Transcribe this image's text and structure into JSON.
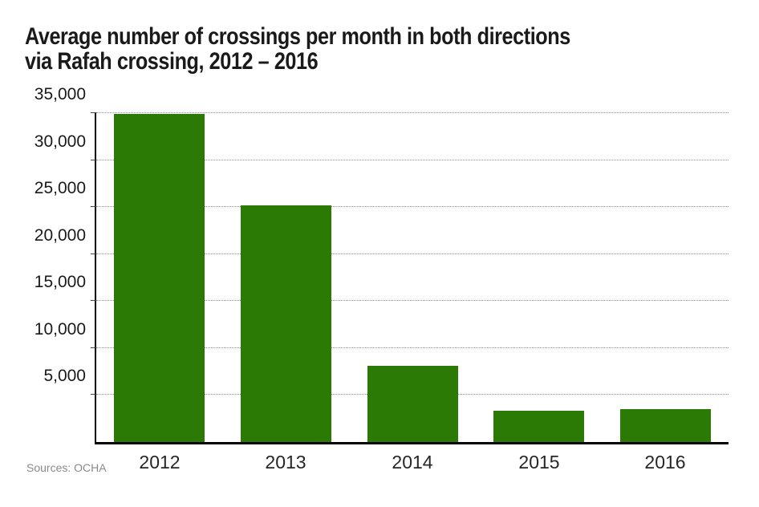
{
  "title": {
    "line1": "Average number of crossings per month in both directions",
    "line2": "via Rafah crossing, 2012 – 2016"
  },
  "source_label": "Sources: OCHA",
  "colors": {
    "bar_green": "#2b7a05",
    "axis_black": "#000000",
    "gridline_gray": "#8f8f8f",
    "title_text": "#1a1a1a",
    "source_gray": "#8a8a8a"
  },
  "chart_data": {
    "type": "bar",
    "title": "Average number of crossings per month in both directions via Rafah crossing, 2012 – 2016",
    "categories": [
      "2012",
      "2013",
      "2014",
      "2015",
      "2016"
    ],
    "values": [
      34900,
      25200,
      8100,
      3300,
      3500
    ],
    "xlabel": "",
    "ylabel": "",
    "ylim": [
      0,
      35000
    ],
    "yticks": [
      5000,
      10000,
      15000,
      20000,
      25000,
      30000,
      35000
    ],
    "ytick_labels": [
      "5,000",
      "10,000",
      "15,000",
      "20,000",
      "25,000",
      "30,000",
      "35,000"
    ],
    "grid": "horizontal-dotted",
    "legend_position": "none",
    "bar_color": "#2b7a05",
    "source": "Sources: OCHA"
  }
}
